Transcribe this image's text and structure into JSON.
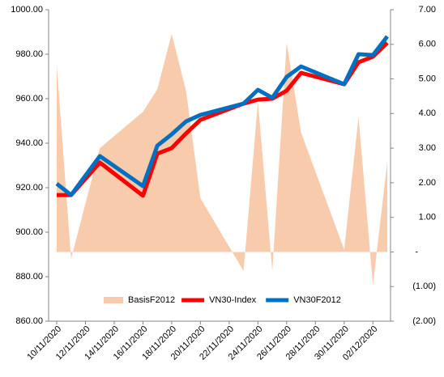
{
  "chart_data": {
    "type": "combo",
    "x": [
      "10/11/2020",
      "11/11/2020",
      "13/11/2020",
      "16/11/2020",
      "17/11/2020",
      "18/11/2020",
      "19/11/2020",
      "20/11/2020",
      "23/11/2020",
      "24/11/2020",
      "25/11/2020",
      "26/11/2020",
      "27/11/2020",
      "30/11/2020",
      "01/12/2020",
      "02/12/2020",
      "03/12/2020"
    ],
    "xlim": [
      "10/11/2020",
      "03/12/2020"
    ],
    "xticks": [
      "10/11/2020",
      "12/11/2020",
      "14/11/2020",
      "16/11/2020",
      "18/11/2020",
      "20/11/2020",
      "22/11/2020",
      "24/11/2020",
      "26/11/2020",
      "28/11/2020",
      "30/11/2020",
      "02/12/2020"
    ],
    "series": [
      {
        "name": "BasisF2012",
        "type": "area",
        "axis": "y2",
        "color": "#f8cbad",
        "values": [
          5.4,
          -0.2,
          3.0,
          4.05,
          4.7,
          6.3,
          4.65,
          1.55,
          -0.55,
          4.35,
          -0.55,
          6.05,
          3.45,
          0.07,
          3.9,
          -0.95,
          2.6
        ]
      },
      {
        "name": "VN30-Index",
        "type": "line",
        "color": "#ff0000",
        "values": [
          916.7,
          916.7,
          931.3,
          916.4,
          935.3,
          937.8,
          944.4,
          950.5,
          957.8,
          959.6,
          960.0,
          963.6,
          971.6,
          966.5,
          976.4,
          978.9,
          985.1
        ]
      },
      {
        "name": "VN30F2012",
        "type": "line",
        "color": "#0070c0",
        "values": [
          921.8,
          916.7,
          934.2,
          920.7,
          938.9,
          944.0,
          949.8,
          952.7,
          957.8,
          964.0,
          960.4,
          969.8,
          974.5,
          966.5,
          980.0,
          979.6,
          988.0
        ]
      }
    ],
    "ylim": [
      860,
      1000
    ],
    "yticks": [
      {
        "value": 860,
        "label": "860.00"
      },
      {
        "value": 880,
        "label": "880.00"
      },
      {
        "value": 900,
        "label": "900.00"
      },
      {
        "value": 920,
        "label": "920.00"
      },
      {
        "value": 940,
        "label": "940.00"
      },
      {
        "value": 960,
        "label": "960.00"
      },
      {
        "value": 980,
        "label": "980.00"
      },
      {
        "value": 1000,
        "label": "1000.00"
      }
    ],
    "y2lim": [
      -2,
      7
    ],
    "y2ticks": [
      {
        "value": -2,
        "label": "(2.00)"
      },
      {
        "value": -1,
        "label": "(1.00)"
      },
      {
        "value": 0,
        "label": "-"
      },
      {
        "value": 1,
        "label": "1.00"
      },
      {
        "value": 2,
        "label": "2.00"
      },
      {
        "value": 3,
        "label": "3.00"
      },
      {
        "value": 4,
        "label": "4.00"
      },
      {
        "value": 5,
        "label": "5.00"
      },
      {
        "value": 6,
        "label": "6.00"
      },
      {
        "value": 7,
        "label": "7.00"
      }
    ],
    "legend": "bottom"
  }
}
